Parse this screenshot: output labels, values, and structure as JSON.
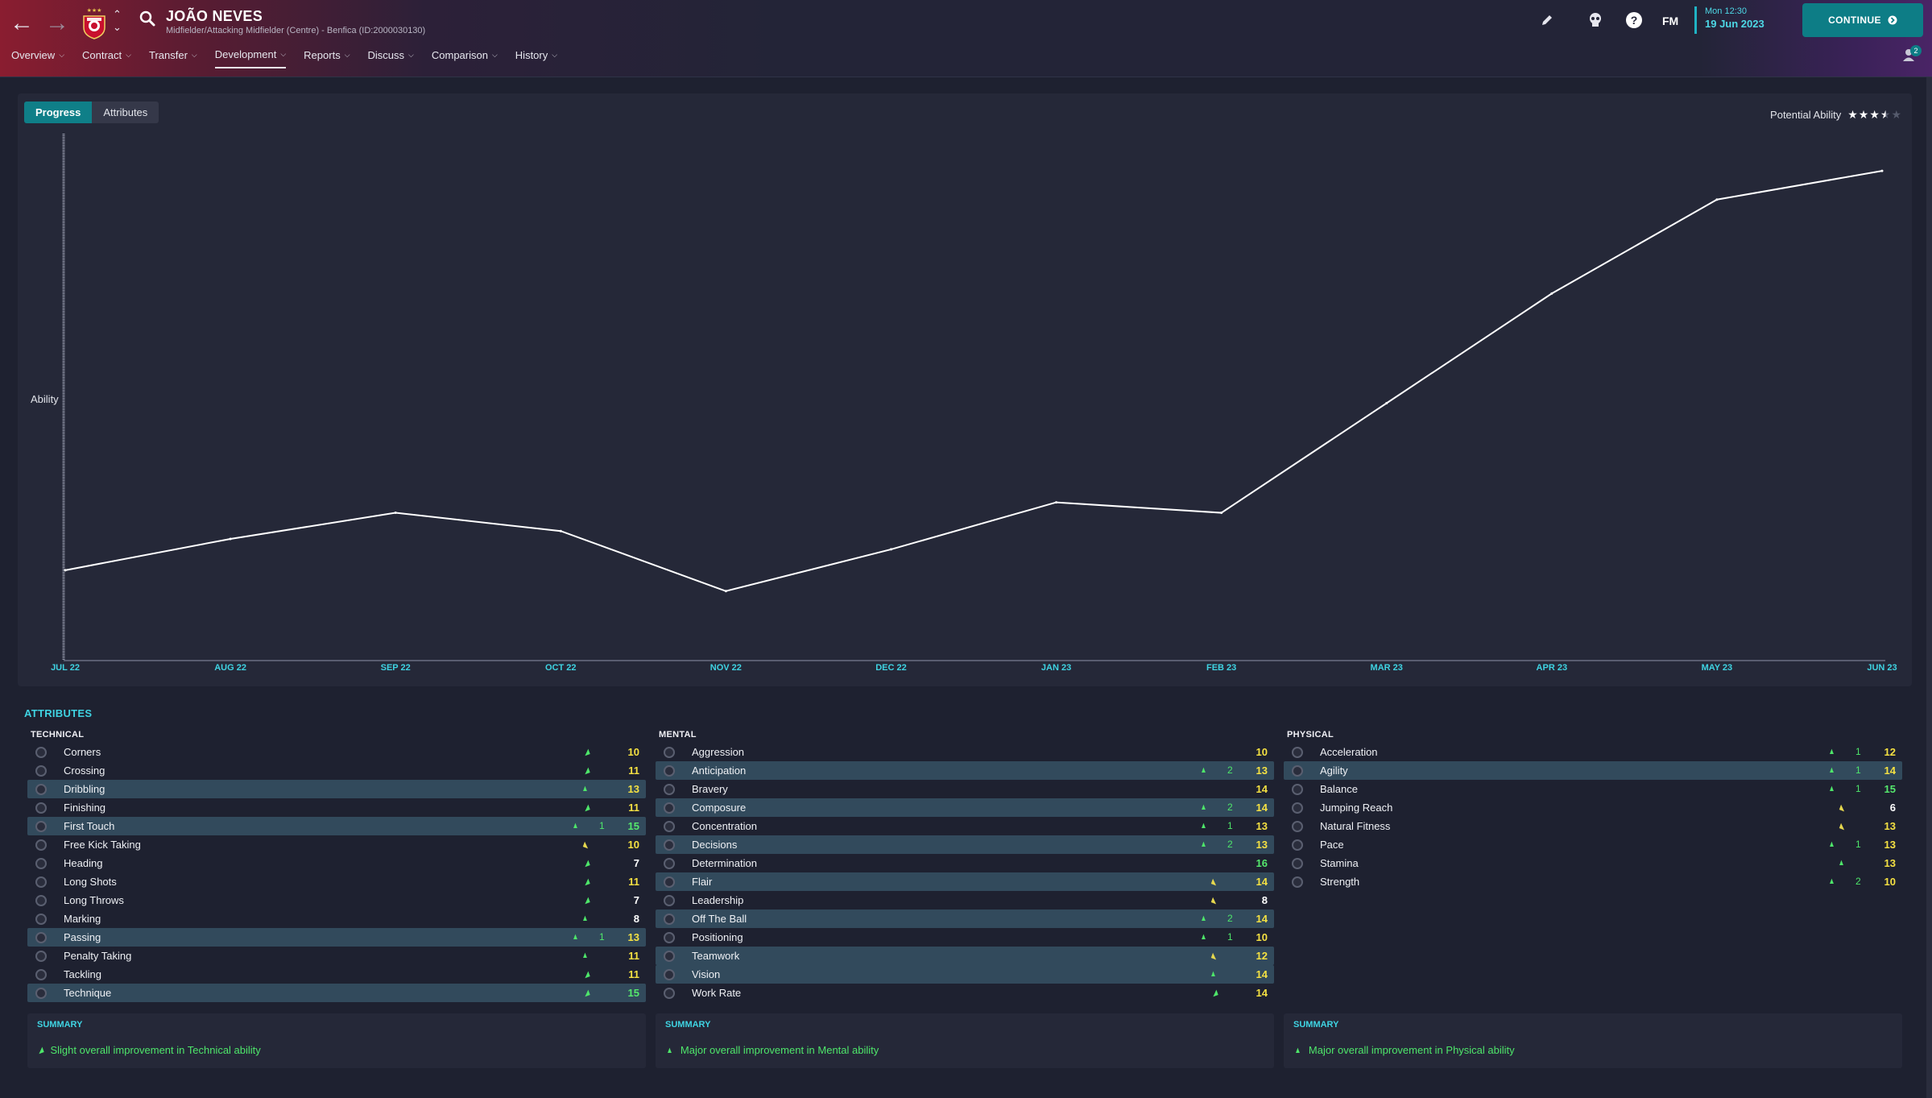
{
  "header": {
    "player_name": "JOÃO NEVES",
    "player_sub": "Midfielder/Attacking Midfielder (Centre) - Benfica (ID:2000030130)",
    "fm_label": "FM",
    "date_time": "Mon 12:30",
    "date_day": "19 Jun 2023",
    "continue_label": "CONTINUE",
    "notif_count": "2",
    "menu": [
      {
        "label": "Overview"
      },
      {
        "label": "Contract"
      },
      {
        "label": "Transfer"
      },
      {
        "label": "Development"
      },
      {
        "label": "Reports"
      },
      {
        "label": "Discuss"
      },
      {
        "label": "Comparison"
      },
      {
        "label": "History"
      }
    ],
    "active_menu": "Development"
  },
  "chart_panel": {
    "tabs": [
      "Progress",
      "Attributes"
    ],
    "active_tab": "Progress",
    "potential_label": "Potential Ability",
    "potential_stars": 3.5,
    "potential_stars_max": 5
  },
  "chart_data": {
    "type": "line",
    "title": "",
    "xlabel": "",
    "ylabel": "Ability",
    "categories": [
      "JUL 22",
      "AUG 22",
      "SEP 22",
      "OCT 22",
      "NOV 22",
      "DEC 22",
      "JAN 23",
      "FEB 23",
      "MAR 23",
      "APR 23",
      "MAY 23",
      "JUN 23"
    ],
    "series": [
      {
        "values": [
          17,
          23,
          28,
          24.5,
          13,
          21,
          30,
          28,
          49,
          70,
          88,
          93.5
        ]
      }
    ],
    "ylim": [
      0,
      100
    ],
    "grid": false,
    "line_color": "#ffffff"
  },
  "attributes": {
    "title": "ATTRIBUTES",
    "columns": [
      {
        "heading": "TECHNICAL",
        "rows": [
          {
            "label": "Corners",
            "arrow": "slight",
            "color": "green",
            "change": "",
            "value": "10",
            "vcolor": "yellow",
            "hl": false
          },
          {
            "label": "Crossing",
            "arrow": "slight",
            "color": "green",
            "change": "",
            "value": "11",
            "vcolor": "yellow",
            "hl": false
          },
          {
            "label": "Dribbling",
            "arrow": "up",
            "color": "green",
            "change": "",
            "value": "13",
            "vcolor": "yellow",
            "hl": true
          },
          {
            "label": "Finishing",
            "arrow": "slight",
            "color": "green",
            "change": "",
            "value": "11",
            "vcolor": "yellow",
            "hl": false
          },
          {
            "label": "First Touch",
            "arrow": "up",
            "color": "green",
            "change": "1",
            "value": "15",
            "vcolor": "green",
            "hl": true
          },
          {
            "label": "Free Kick Taking",
            "arrow": "down-slight",
            "color": "yellow",
            "change": "",
            "value": "10",
            "vcolor": "yellow",
            "hl": false
          },
          {
            "label": "Heading",
            "arrow": "slight",
            "color": "green",
            "change": "",
            "value": "7",
            "vcolor": "white",
            "hl": false
          },
          {
            "label": "Long Shots",
            "arrow": "slight",
            "color": "green",
            "change": "",
            "value": "11",
            "vcolor": "yellow",
            "hl": false
          },
          {
            "label": "Long Throws",
            "arrow": "slight",
            "color": "green",
            "change": "",
            "value": "7",
            "vcolor": "white",
            "hl": false
          },
          {
            "label": "Marking",
            "arrow": "up",
            "color": "green",
            "change": "",
            "value": "8",
            "vcolor": "white",
            "hl": false
          },
          {
            "label": "Passing",
            "arrow": "up",
            "color": "green",
            "change": "1",
            "value": "13",
            "vcolor": "yellow",
            "hl": true
          },
          {
            "label": "Penalty Taking",
            "arrow": "up",
            "color": "green",
            "change": "",
            "value": "11",
            "vcolor": "yellow",
            "hl": false
          },
          {
            "label": "Tackling",
            "arrow": "slight",
            "color": "green",
            "change": "",
            "value": "11",
            "vcolor": "yellow",
            "hl": false
          },
          {
            "label": "Technique",
            "arrow": "slight",
            "color": "green",
            "change": "",
            "value": "15",
            "vcolor": "green",
            "hl": true
          }
        ],
        "summary_title": "SUMMARY",
        "summary_text": "Slight overall improvement in Technical ability",
        "summary_arrow": "slight"
      },
      {
        "heading": "MENTAL",
        "rows": [
          {
            "label": "Aggression",
            "arrow": "",
            "color": "green",
            "change": "",
            "value": "10",
            "vcolor": "yellow",
            "hl": false
          },
          {
            "label": "Anticipation",
            "arrow": "up",
            "color": "green",
            "change": "2",
            "value": "13",
            "vcolor": "yellow",
            "hl": true
          },
          {
            "label": "Bravery",
            "arrow": "",
            "color": "green",
            "change": "",
            "value": "14",
            "vcolor": "yellow",
            "hl": false
          },
          {
            "label": "Composure",
            "arrow": "up",
            "color": "green",
            "change": "2",
            "value": "14",
            "vcolor": "yellow",
            "hl": true
          },
          {
            "label": "Concentration",
            "arrow": "up",
            "color": "green",
            "change": "1",
            "value": "13",
            "vcolor": "yellow",
            "hl": false
          },
          {
            "label": "Decisions",
            "arrow": "up",
            "color": "green",
            "change": "2",
            "value": "13",
            "vcolor": "yellow",
            "hl": true
          },
          {
            "label": "Determination",
            "arrow": "",
            "color": "green",
            "change": "",
            "value": "16",
            "vcolor": "green",
            "hl": false
          },
          {
            "label": "Flair",
            "arrow": "down-slight",
            "color": "yellow",
            "change": "",
            "value": "14",
            "vcolor": "yellow",
            "hl": true
          },
          {
            "label": "Leadership",
            "arrow": "down-slight",
            "color": "yellow",
            "change": "",
            "value": "8",
            "vcolor": "white",
            "hl": false
          },
          {
            "label": "Off The Ball",
            "arrow": "up",
            "color": "green",
            "change": "2",
            "value": "14",
            "vcolor": "yellow",
            "hl": true
          },
          {
            "label": "Positioning",
            "arrow": "up",
            "color": "green",
            "change": "1",
            "value": "10",
            "vcolor": "yellow",
            "hl": false
          },
          {
            "label": "Teamwork",
            "arrow": "down-slight",
            "color": "yellow",
            "change": "",
            "value": "12",
            "vcolor": "yellow",
            "hl": true
          },
          {
            "label": "Vision",
            "arrow": "up",
            "color": "green",
            "change": "",
            "value": "14",
            "vcolor": "yellow",
            "hl": true
          },
          {
            "label": "Work Rate",
            "arrow": "slight",
            "color": "green",
            "change": "",
            "value": "14",
            "vcolor": "yellow",
            "hl": false
          }
        ],
        "summary_title": "SUMMARY",
        "summary_text": "Major overall improvement in Mental ability",
        "summary_arrow": "up"
      },
      {
        "heading": "PHYSICAL",
        "rows": [
          {
            "label": "Acceleration",
            "arrow": "up",
            "color": "green",
            "change": "1",
            "value": "12",
            "vcolor": "yellow",
            "hl": false
          },
          {
            "label": "Agility",
            "arrow": "up",
            "color": "green",
            "change": "1",
            "value": "14",
            "vcolor": "yellow",
            "hl": true
          },
          {
            "label": "Balance",
            "arrow": "up",
            "color": "green",
            "change": "1",
            "value": "15",
            "vcolor": "green",
            "hl": false
          },
          {
            "label": "Jumping Reach",
            "arrow": "down-slight",
            "color": "yellow",
            "change": "",
            "value": "6",
            "vcolor": "white",
            "hl": false
          },
          {
            "label": "Natural Fitness",
            "arrow": "down-slight",
            "color": "yellow",
            "change": "",
            "value": "13",
            "vcolor": "yellow",
            "hl": false
          },
          {
            "label": "Pace",
            "arrow": "up",
            "color": "green",
            "change": "1",
            "value": "13",
            "vcolor": "yellow",
            "hl": false
          },
          {
            "label": "Stamina",
            "arrow": "up",
            "color": "green",
            "change": "",
            "value": "13",
            "vcolor": "yellow",
            "hl": false
          },
          {
            "label": "Strength",
            "arrow": "up",
            "color": "green",
            "change": "2",
            "value": "10",
            "vcolor": "yellow",
            "hl": false
          }
        ],
        "summary_title": "SUMMARY",
        "summary_text": "Major overall improvement in Physical ability",
        "summary_arrow": "up"
      }
    ]
  },
  "colors": {
    "accent": "#0f7f88",
    "accent_text": "#3fd3e2",
    "positive": "#4ee66a",
    "neutral": "#e6d84e",
    "value_yellow": "#f5e142",
    "value_green": "#55e86d",
    "background": "#1e2130",
    "panel": "#252838"
  }
}
